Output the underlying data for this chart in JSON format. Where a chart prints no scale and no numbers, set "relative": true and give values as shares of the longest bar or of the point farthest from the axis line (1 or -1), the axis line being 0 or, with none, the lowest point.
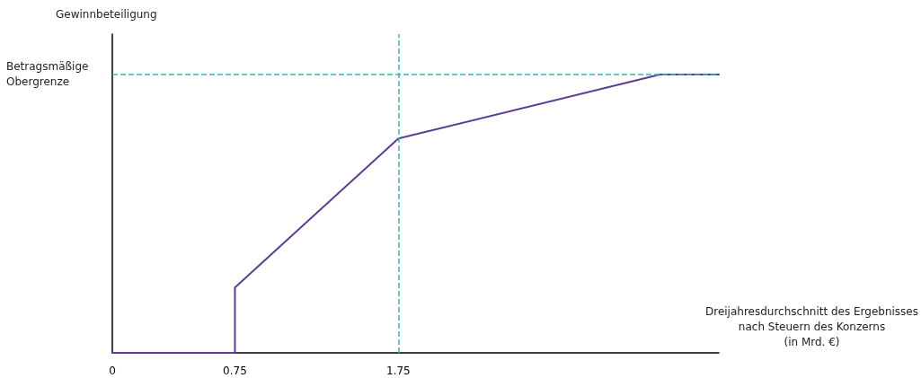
{
  "chart_data": {
    "type": "line",
    "relative": true,
    "ylabel": "Gewinnbeteiligung",
    "xlabel": "Dreijahresdurchschnitt des Ergebnisses\nnach Steuern des Konzerns\n(in Mrd. €)",
    "x": [
      0,
      0.75,
      0.75,
      1.75,
      3.35,
      3.71
    ],
    "series": [
      {
        "color": "#5c3d91",
        "values": [
          0,
          0,
          0.235,
          0.77,
          1,
          1
        ]
      }
    ],
    "xlim": [
      0,
      3.71
    ],
    "xticks": [
      0,
      0.75,
      1.75
    ],
    "ref_lines": [
      {
        "axis": "y",
        "value": 1,
        "label": "Betragsmäßige Obergrenze",
        "color": "#3bb3bd",
        "line_style": "dashed"
      },
      {
        "axis": "x",
        "value": 1.75,
        "color": "#3bb3bd",
        "line_style": "dashed"
      }
    ],
    "marker": "none",
    "line_style": "solid",
    "grid": false
  }
}
